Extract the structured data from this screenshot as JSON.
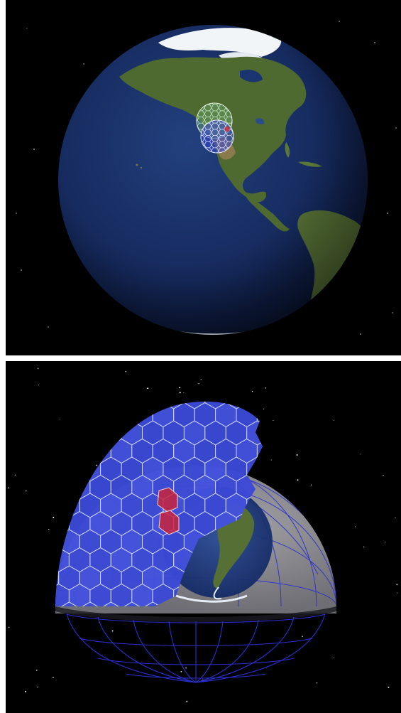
{
  "scene": {
    "top_panel": {
      "name": "earth-overview-view",
      "subject": "globe-north-america-pacific",
      "overlay": "hexagonal-dome-grids-over-california"
    },
    "bottom_panel": {
      "name": "hexagonal-dome-closeup-view",
      "subject": "hex-tiled-dome-over-globe",
      "highlighted_cells": 2
    }
  },
  "colors": {
    "space": "#000000",
    "ocean": "#14295e",
    "land": "#4f6a31",
    "ice": "#f2f5f8",
    "hex_fill": "#3e4bd8",
    "hex_stroke": "#cfd6ff",
    "highlight": "#c8233a",
    "grey_shell": "#8b8b90",
    "wireframe": "#2b2fd0"
  }
}
